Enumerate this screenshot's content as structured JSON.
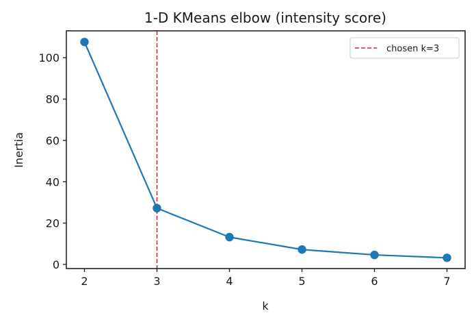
{
  "chart_data": {
    "type": "line",
    "title": "1-D KMeans elbow (intensity score)",
    "xlabel": "k",
    "ylabel": "Inertia",
    "x": [
      2,
      3,
      4,
      5,
      6,
      7
    ],
    "series": [
      {
        "name": "Inertia",
        "values": [
          107.6,
          27.2,
          13.2,
          7.2,
          4.6,
          3.2
        ],
        "color": "#1f77b4",
        "marker": "circle"
      }
    ],
    "annotations": [
      {
        "type": "vline",
        "x": 3,
        "label": "chosen k=3",
        "color": "#d62728",
        "style": "dashed"
      }
    ],
    "xlim": [
      1.75,
      7.25
    ],
    "ylim": [
      -2,
      113
    ],
    "xticks": [
      2,
      3,
      4,
      5,
      6,
      7
    ],
    "yticks": [
      0,
      20,
      40,
      60,
      80,
      100
    ],
    "grid": false,
    "legend": {
      "position": "upper right",
      "entries": [
        "chosen k=3"
      ]
    }
  }
}
